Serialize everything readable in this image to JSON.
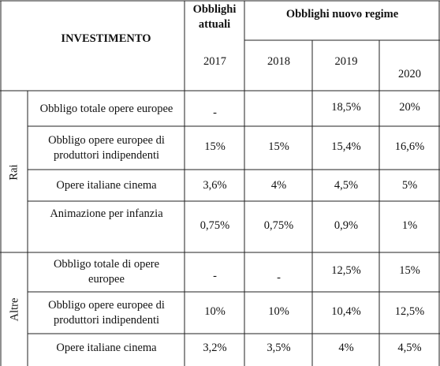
{
  "table": {
    "header": {
      "investimento": "INVESTIMENTO",
      "obblighi_attuali": "Obblighi attuali",
      "obblighi_nuovo_regime": "Obblighi nuovo regime",
      "years": [
        "2017",
        "2018",
        "2019",
        "2020"
      ]
    },
    "groups": [
      {
        "label": "Rai",
        "rows": [
          {
            "label": "Obbligo totale opere europee",
            "values": [
              "-",
              "",
              "18,5%",
              "20%"
            ]
          },
          {
            "label": "Obbligo opere europee di produttori indipendenti",
            "values": [
              "15%",
              "15%",
              "15,4%",
              "16,6%"
            ]
          },
          {
            "label": "Opere italiane cinema",
            "values": [
              "3,6%",
              "4%",
              "4,5%",
              "5%"
            ]
          },
          {
            "label": "Animazione per infanzia",
            "values": [
              "0,75%",
              "0,75%",
              "0,9%",
              "1%"
            ]
          }
        ]
      },
      {
        "label": "Altre",
        "rows": [
          {
            "label": "Obbligo totale di opere europee",
            "values": [
              "-",
              "-",
              "12,5%",
              "15%"
            ]
          },
          {
            "label": "Obbligo opere europee di produttori indipendenti",
            "values": [
              "10%",
              "10%",
              "10,4%",
              "12,5%"
            ]
          },
          {
            "label": "Opere italiane cinema",
            "values": [
              "3,2%",
              "3,5%",
              "4%",
              "4,5%"
            ]
          }
        ]
      }
    ]
  }
}
